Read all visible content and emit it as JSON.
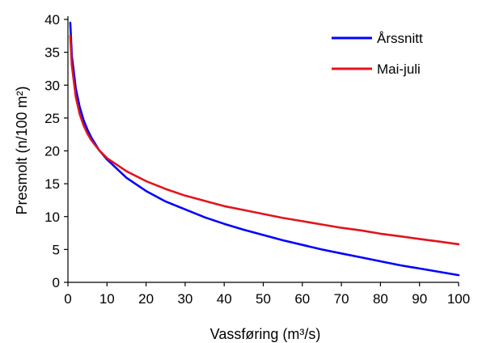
{
  "chart_data": {
    "type": "line",
    "xlabel": "Vassføring (m³/s)",
    "ylabel": "Presmolt (n/100 m²)",
    "xlim": [
      0,
      100
    ],
    "ylim": [
      0,
      40
    ],
    "x_ticks": [
      "0",
      "10",
      "20",
      "30",
      "40",
      "50",
      "60",
      "70",
      "80",
      "90",
      "100"
    ],
    "y_ticks": [
      "0",
      "5",
      "10",
      "15",
      "20",
      "25",
      "30",
      "35",
      "40"
    ],
    "grid": false,
    "legend_position": "top-right",
    "series": [
      {
        "name": "Årssnitt",
        "color": "#0000ff",
        "x": [
          0.6,
          1,
          2,
          3,
          4,
          5,
          6,
          8,
          10,
          15,
          20,
          25,
          30,
          35,
          40,
          45,
          50,
          55,
          60,
          65,
          70,
          75,
          80,
          85,
          90,
          95,
          100
        ],
        "y": [
          39.5,
          34.5,
          29.5,
          26.7,
          24.7,
          23.2,
          22.0,
          20.1,
          18.7,
          15.9,
          13.9,
          12.3,
          11.1,
          9.9,
          8.9,
          8.0,
          7.2,
          6.4,
          5.7,
          5.0,
          4.4,
          3.8,
          3.2,
          2.6,
          2.1,
          1.6,
          1.1
        ]
      },
      {
        "name": "Mai-juli",
        "color": "#e0141e",
        "x": [
          0.6,
          1,
          2,
          3,
          4,
          5,
          6,
          8,
          10,
          15,
          20,
          25,
          30,
          35,
          40,
          45,
          50,
          55,
          60,
          65,
          70,
          75,
          80,
          85,
          90,
          95,
          100
        ],
        "y": [
          37.5,
          33.0,
          28.2,
          25.6,
          23.9,
          22.6,
          21.6,
          20.1,
          18.9,
          16.9,
          15.4,
          14.2,
          13.2,
          12.4,
          11.6,
          11.0,
          10.4,
          9.8,
          9.3,
          8.8,
          8.3,
          7.9,
          7.4,
          7.0,
          6.6,
          6.2,
          5.8
        ]
      }
    ]
  }
}
